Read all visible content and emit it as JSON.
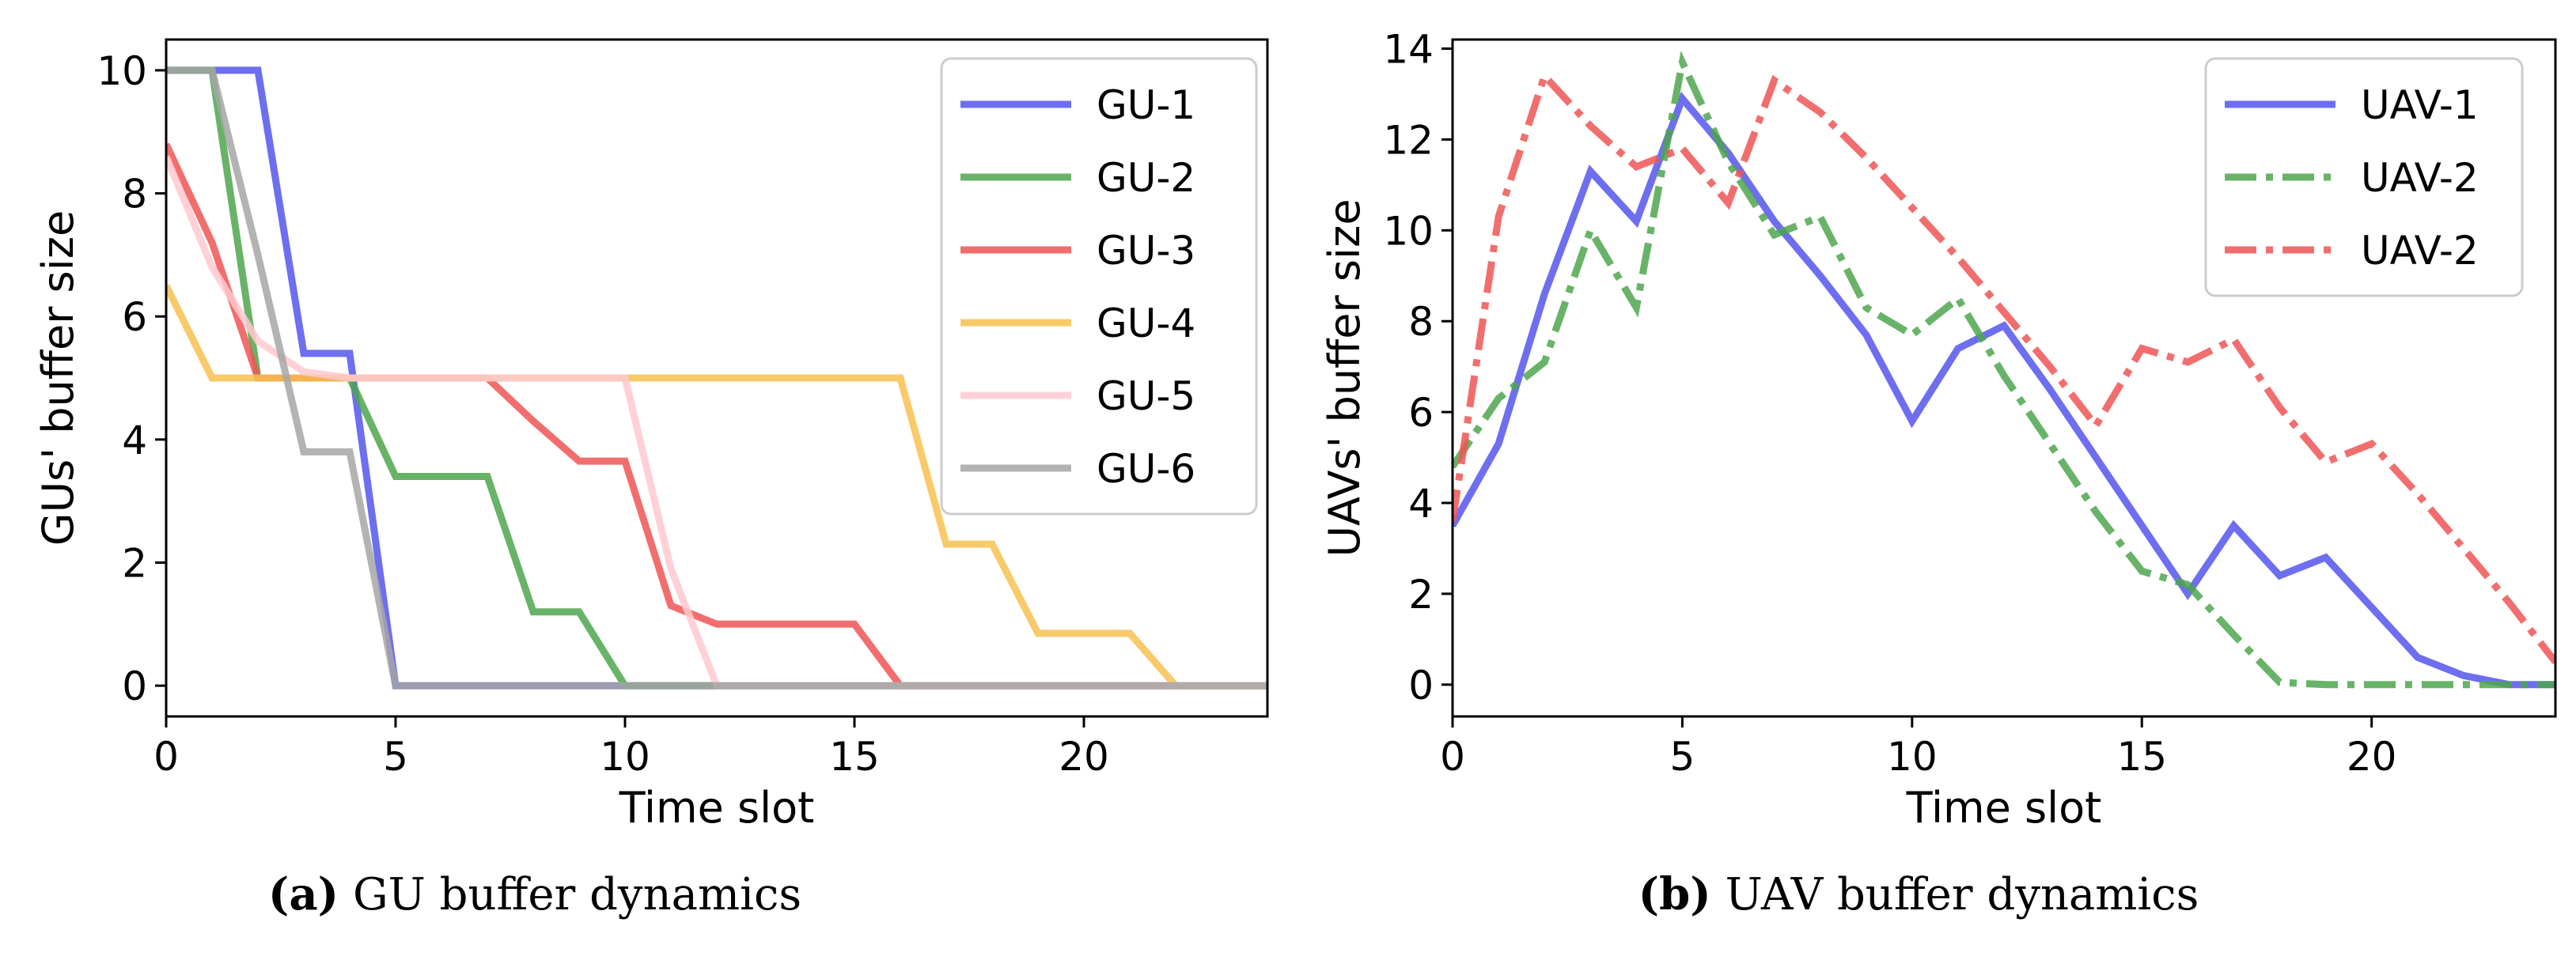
{
  "chart_data": [
    {
      "type": "line",
      "xlabel": "Time slot",
      "ylabel": "GUs' buffer size",
      "xlim": [
        0,
        24
      ],
      "ylim": [
        -0.5,
        10.5
      ],
      "xticks": [
        0,
        5,
        10,
        15,
        20
      ],
      "yticks": [
        0,
        2,
        4,
        6,
        8,
        10
      ],
      "grid": false,
      "legend": "top-right",
      "series": [
        {
          "name": "GU-1",
          "color": "#5555ee",
          "dash": "solid",
          "x": [
            0,
            1,
            2,
            3,
            4,
            5,
            6,
            7,
            8,
            9,
            10,
            11,
            12,
            13,
            14,
            15,
            16,
            17,
            18,
            19,
            20,
            21,
            22,
            23,
            24
          ],
          "y": [
            10,
            10,
            10,
            5.4,
            5.4,
            0,
            0,
            0,
            0,
            0,
            0,
            0,
            0,
            0,
            0,
            0,
            0,
            0,
            0,
            0,
            0,
            0,
            0,
            0,
            0
          ]
        },
        {
          "name": "GU-2",
          "color": "#4ea64e",
          "dash": "solid",
          "x": [
            0,
            1,
            2,
            3,
            4,
            5,
            6,
            7,
            8,
            9,
            10,
            11,
            12,
            13,
            14,
            15,
            16,
            17,
            18,
            19,
            20,
            21,
            22,
            23,
            24
          ],
          "y": [
            10,
            10,
            5,
            5,
            5,
            3.4,
            3.4,
            3.4,
            1.2,
            1.2,
            0,
            0,
            0,
            0,
            0,
            0,
            0,
            0,
            0,
            0,
            0,
            0,
            0,
            0,
            0
          ]
        },
        {
          "name": "GU-3",
          "color": "#f05555",
          "dash": "solid",
          "x": [
            0,
            1,
            2,
            3,
            4,
            5,
            6,
            7,
            8,
            9,
            10,
            11,
            12,
            13,
            14,
            15,
            16,
            17,
            18,
            19,
            20,
            21,
            22,
            23,
            24
          ],
          "y": [
            8.8,
            7.2,
            5,
            5,
            5,
            5,
            5,
            5,
            4.3,
            3.65,
            3.65,
            1.3,
            1,
            1,
            1,
            1,
            0,
            0,
            0,
            0,
            0,
            0,
            0,
            0,
            0
          ]
        },
        {
          "name": "GU-4",
          "color": "#f8c150",
          "dash": "solid",
          "x": [
            0,
            1,
            2,
            3,
            4,
            5,
            6,
            7,
            8,
            9,
            10,
            11,
            12,
            13,
            14,
            15,
            16,
            17,
            18,
            19,
            20,
            21,
            22,
            23,
            24
          ],
          "y": [
            6.5,
            5,
            5,
            5,
            5,
            5,
            5,
            5,
            5,
            5,
            5,
            5,
            5,
            5,
            5,
            5,
            5,
            2.3,
            2.3,
            0.85,
            0.85,
            0.85,
            0,
            0,
            0
          ]
        },
        {
          "name": "GU-5",
          "color": "#ffc9cf",
          "dash": "solid",
          "x": [
            0,
            1,
            2,
            3,
            4,
            5,
            6,
            7,
            8,
            9,
            10,
            11,
            12,
            13,
            14,
            15,
            16,
            17,
            18,
            19,
            20,
            21,
            22,
            23,
            24
          ],
          "y": [
            8.6,
            6.8,
            5.6,
            5.1,
            5,
            5,
            5,
            5,
            5,
            5,
            5,
            1.9,
            0,
            0,
            0,
            0,
            0,
            0,
            0,
            0,
            0,
            0,
            0,
            0,
            0
          ]
        },
        {
          "name": "GU-6",
          "color": "#a6a6a6",
          "dash": "solid",
          "x": [
            0,
            1,
            2,
            3,
            4,
            5,
            6,
            7,
            8,
            9,
            10,
            11,
            12,
            13,
            14,
            15,
            16,
            17,
            18,
            19,
            20,
            21,
            22,
            23,
            24
          ],
          "y": [
            10,
            10,
            7,
            3.8,
            3.8,
            0,
            0,
            0,
            0,
            0,
            0,
            0,
            0,
            0,
            0,
            0,
            0,
            0,
            0,
            0,
            0,
            0,
            0,
            0,
            0
          ]
        }
      ]
    },
    {
      "type": "line",
      "xlabel": "Time slot",
      "ylabel": "UAVs' buffer size",
      "xlim": [
        0,
        24
      ],
      "ylim": [
        -0.7,
        14.2
      ],
      "xticks": [
        0,
        5,
        10,
        15,
        20
      ],
      "yticks": [
        0,
        2,
        4,
        6,
        8,
        10,
        12,
        14
      ],
      "grid": false,
      "legend": "top-right",
      "series": [
        {
          "name": "UAV-1",
          "color": "#5555ee",
          "dash": "solid",
          "x": [
            0,
            1,
            2,
            3,
            4,
            5,
            6,
            7,
            8,
            9,
            10,
            11,
            12,
            13,
            14,
            15,
            16,
            17,
            18,
            19,
            20,
            21,
            22,
            23,
            24
          ],
          "y": [
            3.5,
            5.3,
            8.6,
            11.3,
            10.2,
            12.9,
            11.7,
            10.2,
            9,
            7.7,
            5.8,
            7.4,
            7.9,
            6.5,
            5,
            3.5,
            2,
            3.5,
            2.4,
            2.8,
            1.7,
            0.6,
            0.2,
            0,
            0
          ]
        },
        {
          "name": "UAV-2",
          "color": "#4ea64e",
          "dash": "dashdot",
          "x": [
            0,
            1,
            2,
            3,
            4,
            5,
            6,
            7,
            8,
            9,
            10,
            11,
            12,
            13,
            14,
            15,
            16,
            17,
            18,
            19,
            20,
            21,
            22,
            23,
            24
          ],
          "y": [
            4.8,
            6.3,
            7.1,
            10,
            8.3,
            13.7,
            11.5,
            9.9,
            10.3,
            8.3,
            7.7,
            8.5,
            6.8,
            5.3,
            3.8,
            2.5,
            2.2,
            1.1,
            0.05,
            0,
            0,
            0,
            0,
            0,
            0
          ]
        },
        {
          "name": "UAV-2",
          "color": "#f05555",
          "dash": "dashdot",
          "x": [
            0,
            1,
            2,
            3,
            4,
            5,
            6,
            7,
            8,
            9,
            10,
            11,
            12,
            13,
            14,
            15,
            16,
            17,
            18,
            19,
            20,
            21,
            22,
            23,
            24
          ],
          "y": [
            3.6,
            10.3,
            13.4,
            12.3,
            11.4,
            11.8,
            10.6,
            13.3,
            12.6,
            11.6,
            10.5,
            9.4,
            8.2,
            7,
            5.7,
            7.4,
            7.1,
            7.6,
            6.1,
            4.9,
            5.3,
            4.2,
            3,
            1.8,
            0.5
          ]
        }
      ]
    }
  ],
  "captions": [
    {
      "letter": "(a)",
      "text": "GU buffer dynamics"
    },
    {
      "letter": "(b)",
      "text": "UAV buffer dynamics"
    }
  ]
}
